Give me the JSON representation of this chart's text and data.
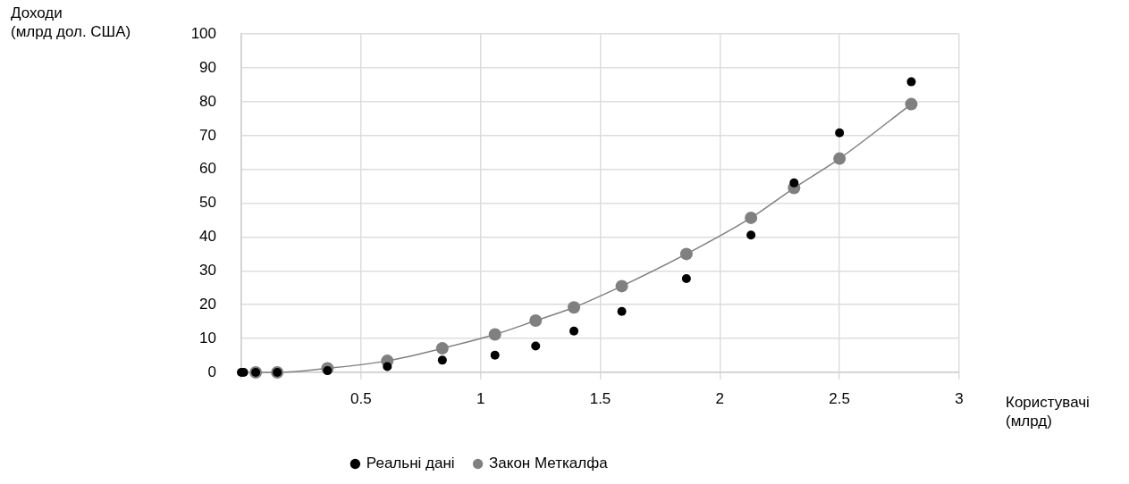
{
  "chart_data": {
    "type": "scatter",
    "xlabel": "Користувачі\n(млрд)",
    "ylabel": "Доходи\n(млрд дол. США)",
    "xlim": [
      0,
      3
    ],
    "xticks": [
      {
        "value": 0,
        "label": null
      },
      0.5,
      1,
      1.5,
      2,
      2.5,
      3
    ],
    "ylim": [
      0,
      100
    ],
    "yticks": [
      0,
      10,
      20,
      30,
      40,
      50,
      60,
      70,
      80,
      90,
      100
    ],
    "grid": true,
    "legend": "bottom",
    "marker": "circle",
    "series": [
      {
        "name": "Реальні дані",
        "type": "scatter",
        "color": "#000000",
        "x": [
          0,
          0.01,
          0.06,
          0.15,
          0.36,
          0.61,
          0.84,
          1.06,
          1.23,
          1.39,
          1.59,
          1.86,
          2.13,
          2.31,
          2.5,
          2.8
        ],
        "values": [
          0,
          0,
          0,
          0,
          0.5,
          1.7,
          3.6,
          5.1,
          7.8,
          12.2,
          18,
          27.7,
          40.6,
          56,
          70.8,
          85.9
        ]
      },
      {
        "name": "Закон Меткалфа",
        "type": "line",
        "color": "#808080",
        "line_style": "solid",
        "x": [
          0.06,
          0.15,
          0.36,
          0.61,
          0.84,
          1.06,
          1.23,
          1.39,
          1.59,
          1.86,
          2.13,
          2.31,
          2.5,
          2.8
        ],
        "values": [
          0,
          0,
          1.2,
          3.4,
          7.1,
          11.2,
          15.3,
          19.2,
          25.5,
          35,
          45.7,
          54.5,
          63.2,
          79.3
        ]
      }
    ]
  }
}
